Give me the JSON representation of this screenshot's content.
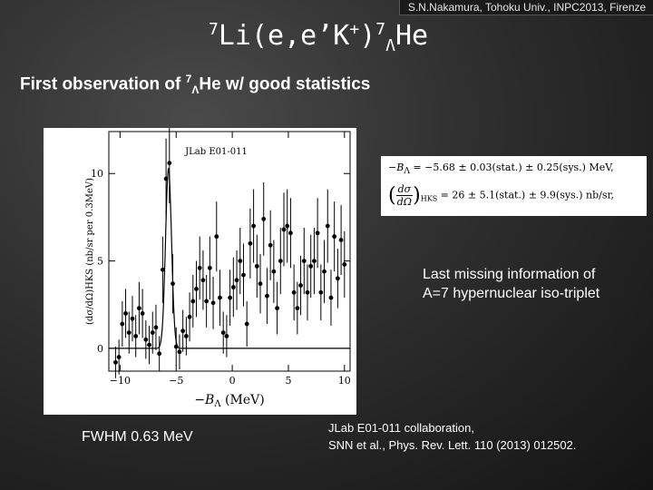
{
  "header": {
    "credit": "S.N.Nakamura, Tohoku Univ., INPC2013, Firenze"
  },
  "title": {
    "pre_sup": "7",
    "main": "Li(e,e’K",
    "k_sup": "+",
    "close": ")",
    "hyper_sup": "7",
    "hyper_sub": "Λ",
    "nucleus": "He"
  },
  "subtitle": {
    "pre": "First observation of ",
    "sup": "7",
    "sub": "Λ",
    "post": "He w/ good statistics"
  },
  "equations": {
    "eq1_lhs": "−B",
    "eq1_lhs_sub": "Λ",
    "eq1_rhs": " = −5.68 ± 0.03(stat.) ± 0.25(sys.) MeV,",
    "eq2_num": "dσ",
    "eq2_den": "dΩ",
    "eq2_sub": "HKS",
    "eq2_rhs": " = 26 ± 5.1(stat.) ± 9.9(sys.) nb/sr,"
  },
  "info": {
    "line1": "Last missing information of",
    "line2": "A=7 hypernuclear iso-triplet"
  },
  "fwhm": "FWHM 0.63 MeV",
  "citation": {
    "line1": "JLab E01-011 collaboration,",
    "line2": "SNN et al., Phys. Rev. Lett. 110 (2013) 012502."
  },
  "chart_data": {
    "type": "scatter",
    "annotation": "JLab E01-011",
    "xlabel": "−B",
    "xlabel_sub": "Λ",
    "xlabel_unit": "(MeV)",
    "ylabel": "(dσ/dΩ)HKS (nb/sr per 0.3MeV)",
    "xlim": [
      -11,
      10.5
    ],
    "ylim": [
      -1.3,
      12.4
    ],
    "xticks": [
      "−10",
      "−5",
      "0",
      "5",
      "10"
    ],
    "xtick_values": [
      -10,
      -5,
      0,
      5,
      10
    ],
    "yticks": [
      "0",
      "5",
      "10"
    ],
    "ytick_values": [
      0,
      5,
      10
    ],
    "points": [
      {
        "x": -10.4,
        "y": -0.8,
        "e": 0.9
      },
      {
        "x": -10.1,
        "y": -0.5,
        "e": 1.0
      },
      {
        "x": -9.8,
        "y": 1.4,
        "e": 1.3
      },
      {
        "x": -9.5,
        "y": 2.0,
        "e": 1.4
      },
      {
        "x": -9.2,
        "y": 0.9,
        "e": 1.2
      },
      {
        "x": -8.9,
        "y": 1.7,
        "e": 1.3
      },
      {
        "x": -8.6,
        "y": 0.7,
        "e": 1.2
      },
      {
        "x": -8.3,
        "y": 2.3,
        "e": 1.5
      },
      {
        "x": -8.0,
        "y": 2.0,
        "e": 1.4
      },
      {
        "x": -7.7,
        "y": 0.5,
        "e": 1.1
      },
      {
        "x": -7.4,
        "y": 0.2,
        "e": 1.1
      },
      {
        "x": -7.1,
        "y": 0.9,
        "e": 1.2
      },
      {
        "x": -6.8,
        "y": 1.2,
        "e": 1.3
      },
      {
        "x": -6.5,
        "y": -0.3,
        "e": 1.0
      },
      {
        "x": -6.2,
        "y": 4.5,
        "e": 1.9
      },
      {
        "x": -5.9,
        "y": 9.7,
        "e": 2.3
      },
      {
        "x": -5.6,
        "y": 10.6,
        "e": 2.3
      },
      {
        "x": -5.3,
        "y": 3.7,
        "e": 1.7
      },
      {
        "x": -5.0,
        "y": 0.1,
        "e": 1.1
      },
      {
        "x": -4.7,
        "y": -0.2,
        "e": 1.0
      },
      {
        "x": -4.4,
        "y": 1.0,
        "e": 1.2
      },
      {
        "x": -4.1,
        "y": 0.7,
        "e": 1.1
      },
      {
        "x": -3.8,
        "y": 1.8,
        "e": 1.4
      },
      {
        "x": -3.5,
        "y": 2.7,
        "e": 1.5
      },
      {
        "x": -3.2,
        "y": 3.4,
        "e": 1.6
      },
      {
        "x": -2.9,
        "y": 4.6,
        "e": 1.8
      },
      {
        "x": -2.6,
        "y": 3.9,
        "e": 1.7
      },
      {
        "x": -2.3,
        "y": 2.7,
        "e": 1.5
      },
      {
        "x": -2.0,
        "y": 4.6,
        "e": 1.8
      },
      {
        "x": -1.7,
        "y": 2.6,
        "e": 1.5
      },
      {
        "x": -1.4,
        "y": 6.4,
        "e": 2.0
      },
      {
        "x": -1.1,
        "y": 2.9,
        "e": 1.6
      },
      {
        "x": -0.8,
        "y": 0.9,
        "e": 1.2
      },
      {
        "x": -0.5,
        "y": 0.7,
        "e": 1.2
      },
      {
        "x": -0.2,
        "y": 2.9,
        "e": 1.6
      },
      {
        "x": 0.1,
        "y": 3.5,
        "e": 1.7
      },
      {
        "x": 0.4,
        "y": 3.9,
        "e": 1.7
      },
      {
        "x": 0.7,
        "y": 5.0,
        "e": 1.9
      },
      {
        "x": 1.0,
        "y": 4.2,
        "e": 1.8
      },
      {
        "x": 1.3,
        "y": 1.4,
        "e": 1.3
      },
      {
        "x": 1.6,
        "y": 6.0,
        "e": 2.0
      },
      {
        "x": 1.9,
        "y": 7.0,
        "e": 2.1
      },
      {
        "x": 2.2,
        "y": 4.7,
        "e": 1.8
      },
      {
        "x": 2.5,
        "y": 3.7,
        "e": 1.7
      },
      {
        "x": 2.8,
        "y": 7.4,
        "e": 2.1
      },
      {
        "x": 3.1,
        "y": 3.0,
        "e": 1.6
      },
      {
        "x": 3.4,
        "y": 5.9,
        "e": 2.0
      },
      {
        "x": 3.7,
        "y": 4.4,
        "e": 1.8
      },
      {
        "x": 4.0,
        "y": 2.3,
        "e": 1.5
      },
      {
        "x": 4.3,
        "y": 5.0,
        "e": 1.9
      },
      {
        "x": 4.6,
        "y": 6.8,
        "e": 2.1
      },
      {
        "x": 4.9,
        "y": 7.0,
        "e": 2.1
      },
      {
        "x": 5.2,
        "y": 6.6,
        "e": 2.0
      },
      {
        "x": 5.5,
        "y": 3.2,
        "e": 1.6
      },
      {
        "x": 5.8,
        "y": 2.3,
        "e": 1.5
      },
      {
        "x": 6.1,
        "y": 3.6,
        "e": 1.7
      },
      {
        "x": 6.4,
        "y": 5.0,
        "e": 1.9
      },
      {
        "x": 6.7,
        "y": 3.2,
        "e": 1.6
      },
      {
        "x": 7.0,
        "y": 4.7,
        "e": 1.8
      },
      {
        "x": 7.3,
        "y": 5.0,
        "e": 1.9
      },
      {
        "x": 7.6,
        "y": 6.6,
        "e": 2.0
      },
      {
        "x": 7.9,
        "y": 3.2,
        "e": 1.6
      },
      {
        "x": 8.2,
        "y": 4.4,
        "e": 1.8
      },
      {
        "x": 8.5,
        "y": 7.0,
        "e": 2.1
      },
      {
        "x": 8.8,
        "y": 2.9,
        "e": 1.6
      },
      {
        "x": 9.1,
        "y": 6.4,
        "e": 2.0
      },
      {
        "x": 9.4,
        "y": 4.0,
        "e": 1.7
      },
      {
        "x": 9.7,
        "y": 6.2,
        "e": 2.0
      },
      {
        "x": 10.0,
        "y": 4.8,
        "e": 1.9
      }
    ],
    "fit_peak": {
      "center": -5.68,
      "height": 10.3,
      "fwhm": 0.63
    }
  }
}
